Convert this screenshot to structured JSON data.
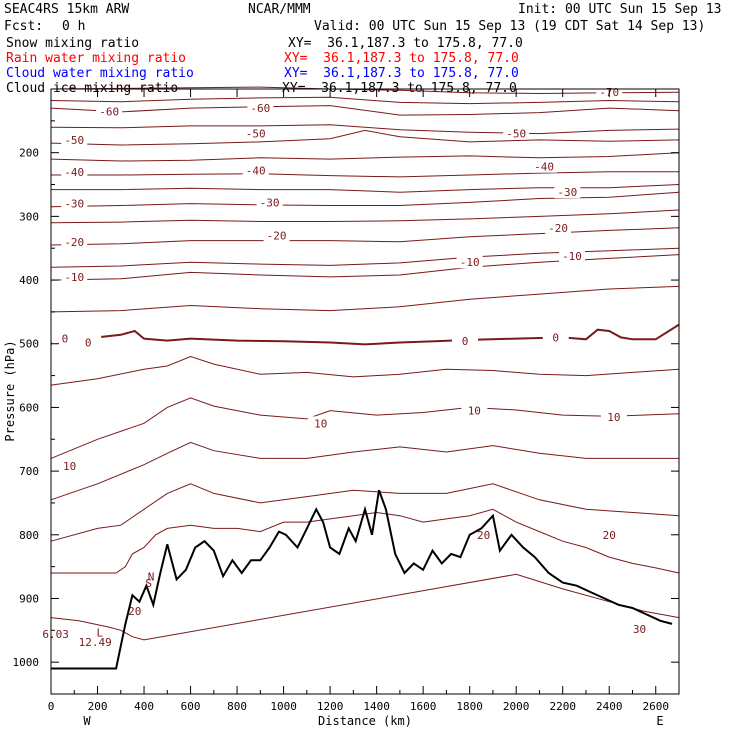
{
  "header": {
    "model": "SEAC4RS 15km ARW",
    "org": "NCAR/MMM",
    "init": "Init: 00 UTC Sun 15 Sep 13",
    "fcst_label": "Fcst:",
    "fcst_value": "0 h",
    "valid": "Valid: 00 UTC Sun 15 Sep 13 (19 CDT Sat 14 Sep 13)"
  },
  "fields": [
    {
      "name": "Snow mixing ratio",
      "xy": "XY=  36.1,187.3 to 175.8, 77.0",
      "color": "#000000"
    },
    {
      "name": "Rain water mixing ratio",
      "xy": "XY=  36.1,187.3 to 175.8, 77.0",
      "color": "#ff0000"
    },
    {
      "name": "Cloud water mixing ratio",
      "xy": "XY=  36.1,187.3 to 175.8, 77.0",
      "color": "#0000ff"
    },
    {
      "name": "Cloud ice mixing ratio",
      "xy": "XY=  36.1,187.3 to 175.8, 77.0",
      "color": "#000000"
    }
  ],
  "colors": {
    "isotherm": "#7a1a1a",
    "zero_isotherm": "#7a1a1a",
    "terrain": "#000000"
  },
  "chart_data": {
    "type": "line",
    "title": "",
    "xlabel": "Distance (km)",
    "ylabel": "Pressure (hPa)",
    "xlim": [
      0,
      2700
    ],
    "ylim": [
      1050,
      100
    ],
    "x_ticks": [
      0,
      200,
      400,
      600,
      800,
      1000,
      1200,
      1400,
      1600,
      1800,
      2000,
      2200,
      2400,
      2600
    ],
    "y_ticks": [
      200,
      300,
      400,
      500,
      600,
      700,
      800,
      900,
      1000
    ],
    "x_end_labels": {
      "left": "W",
      "right": "E"
    },
    "grid": false,
    "terrain": {
      "x": [
        0,
        280,
        320,
        350,
        380,
        410,
        440,
        470,
        500,
        540,
        580,
        620,
        660,
        700,
        740,
        780,
        820,
        860,
        900,
        940,
        980,
        1010,
        1060,
        1100,
        1140,
        1170,
        1200,
        1240,
        1280,
        1310,
        1350,
        1380,
        1410,
        1440,
        1480,
        1520,
        1560,
        1600,
        1640,
        1680,
        1720,
        1760,
        1800,
        1850,
        1900,
        1930,
        1980,
        2030,
        2080,
        2140,
        2200,
        2260,
        2320,
        2380,
        2440,
        2500,
        2560,
        2620,
        2670
      ],
      "p": [
        1010,
        1010,
        940,
        895,
        905,
        880,
        910,
        860,
        815,
        870,
        855,
        820,
        810,
        825,
        865,
        840,
        860,
        840,
        840,
        820,
        795,
        800,
        820,
        790,
        760,
        780,
        820,
        830,
        790,
        810,
        760,
        800,
        730,
        760,
        830,
        860,
        845,
        855,
        825,
        845,
        830,
        835,
        800,
        790,
        770,
        825,
        800,
        820,
        835,
        860,
        875,
        880,
        890,
        900,
        910,
        915,
        925,
        935,
        940
      ]
    },
    "isotherms": [
      {
        "value": -70,
        "labels": [
          {
            "x": 2400,
            "p": 105
          }
        ],
        "x": [
          0,
          300,
          600,
          900,
          1200,
          1500,
          1800,
          2100,
          2400,
          2700
        ],
        "p": [
          100,
          99,
          98,
          97,
          100,
          102,
          106,
          107,
          106,
          105
        ]
      },
      {
        "value": -65,
        "labels": [],
        "x": [
          0,
          300,
          600,
          900,
          1200,
          1500,
          1800,
          2100,
          2400,
          2700
        ],
        "p": [
          118,
          120,
          116,
          114,
          113,
          121,
          123,
          121,
          118,
          120
        ]
      },
      {
        "value": -60,
        "labels": [
          {
            "x": 250,
            "p": 135
          },
          {
            "x": 900,
            "p": 130
          }
        ],
        "x": [
          0,
          300,
          600,
          900,
          1200,
          1500,
          1800,
          2100,
          2400,
          2700
        ],
        "p": [
          130,
          136,
          130,
          128,
          126,
          141,
          140,
          137,
          130,
          134
        ]
      },
      {
        "value": -55,
        "labels": [],
        "x": [
          0,
          300,
          600,
          900,
          1200,
          1500,
          1800,
          2100,
          2400,
          2700
        ],
        "p": [
          160,
          161,
          158,
          158,
          156,
          164,
          168,
          170,
          165,
          163
        ]
      },
      {
        "value": -50,
        "labels": [
          {
            "x": 100,
            "p": 180
          },
          {
            "x": 880,
            "p": 170
          },
          {
            "x": 2000,
            "p": 170
          }
        ],
        "x": [
          0,
          300,
          600,
          900,
          1200,
          1350,
          1500,
          1800,
          2100,
          2400,
          2700
        ],
        "p": [
          185,
          188,
          186,
          183,
          178,
          165,
          175,
          183,
          180,
          182,
          180
        ]
      },
      {
        "value": -45,
        "labels": [],
        "x": [
          0,
          300,
          600,
          900,
          1200,
          1500,
          1800,
          2100,
          2400,
          2700
        ],
        "p": [
          210,
          213,
          212,
          208,
          210,
          207,
          205,
          208,
          206,
          200
        ]
      },
      {
        "value": -40,
        "labels": [
          {
            "x": 100,
            "p": 230
          },
          {
            "x": 880,
            "p": 228
          },
          {
            "x": 2120,
            "p": 222
          }
        ],
        "x": [
          0,
          300,
          600,
          900,
          1200,
          1500,
          1800,
          2100,
          2400,
          2700
        ],
        "p": [
          235,
          235,
          234,
          233,
          236,
          238,
          235,
          232,
          230,
          230
        ]
      },
      {
        "value": -35,
        "labels": [],
        "x": [
          0,
          300,
          600,
          900,
          1200,
          1500,
          1800,
          2100,
          2400,
          2700
        ],
        "p": [
          258,
          258,
          256,
          258,
          258,
          262,
          258,
          255,
          255,
          250
        ]
      },
      {
        "value": -30,
        "labels": [
          {
            "x": 100,
            "p": 280
          },
          {
            "x": 940,
            "p": 278
          },
          {
            "x": 2220,
            "p": 262
          }
        ],
        "x": [
          0,
          300,
          600,
          900,
          1200,
          1500,
          1800,
          2100,
          2400,
          2700
        ],
        "p": [
          285,
          283,
          280,
          282,
          283,
          283,
          278,
          272,
          270,
          262
        ]
      },
      {
        "value": -25,
        "labels": [],
        "x": [
          0,
          300,
          600,
          900,
          1200,
          1500,
          1800,
          2100,
          2400,
          2700
        ],
        "p": [
          310,
          309,
          306,
          308,
          308,
          307,
          304,
          300,
          296,
          290
        ]
      },
      {
        "value": -20,
        "labels": [
          {
            "x": 100,
            "p": 340
          },
          {
            "x": 970,
            "p": 330
          },
          {
            "x": 2180,
            "p": 318
          }
        ],
        "x": [
          0,
          300,
          600,
          900,
          1200,
          1500,
          1800,
          2100,
          2400,
          2700
        ],
        "p": [
          345,
          343,
          338,
          338,
          338,
          340,
          332,
          327,
          322,
          318
        ]
      },
      {
        "value": -15,
        "labels": [],
        "x": [
          0,
          300,
          600,
          900,
          1200,
          1500,
          1800,
          2100,
          2400,
          2700
        ],
        "p": [
          380,
          378,
          372,
          375,
          377,
          373,
          364,
          358,
          354,
          350
        ]
      },
      {
        "value": -10,
        "labels": [
          {
            "x": 100,
            "p": 395
          },
          {
            "x": 1800,
            "p": 372
          },
          {
            "x": 2240,
            "p": 362
          }
        ],
        "x": [
          0,
          300,
          600,
          900,
          1200,
          1500,
          1800,
          2100,
          2400,
          2700
        ],
        "p": [
          400,
          398,
          388,
          392,
          395,
          392,
          380,
          372,
          366,
          360
        ]
      },
      {
        "value": -5,
        "labels": [],
        "x": [
          0,
          300,
          600,
          900,
          1200,
          1500,
          1800,
          2100,
          2400,
          2700
        ],
        "p": [
          450,
          448,
          440,
          445,
          448,
          442,
          430,
          422,
          414,
          410
        ]
      },
      {
        "value": 0,
        "labels": [
          {
            "x": 60,
            "p": 492
          },
          {
            "x": 160,
            "p": 498
          },
          {
            "x": 1780,
            "p": 496
          },
          {
            "x": 2170,
            "p": 490
          }
        ],
        "x": [
          0,
          150,
          300,
          360,
          400,
          500,
          600,
          800,
          1000,
          1200,
          1350,
          1500,
          1650,
          1800,
          2000,
          2200,
          2300,
          2350,
          2400,
          2450,
          2500,
          2600,
          2700
        ],
        "p": [
          500,
          492,
          486,
          480,
          492,
          495,
          492,
          495,
          496,
          498,
          501,
          498,
          496,
          494,
          492,
          490,
          493,
          478,
          480,
          490,
          493,
          493,
          470
        ]
      },
      {
        "value": 5,
        "labels": [],
        "x": [
          0,
          200,
          400,
          500,
          600,
          700,
          900,
          1100,
          1300,
          1500,
          1700,
          1900,
          2100,
          2300,
          2500,
          2700
        ],
        "p": [
          565,
          555,
          540,
          535,
          520,
          532,
          548,
          545,
          552,
          548,
          540,
          542,
          548,
          550,
          545,
          540
        ]
      },
      {
        "value": 10,
        "labels": [
          {
            "x": 80,
            "p": 692
          },
          {
            "x": 1160,
            "p": 625
          },
          {
            "x": 1820,
            "p": 605
          },
          {
            "x": 2420,
            "p": 615
          }
        ],
        "x": [
          0,
          200,
          400,
          500,
          600,
          700,
          900,
          1100,
          1200,
          1400,
          1600,
          1800,
          2000,
          2200,
          2400,
          2700
        ],
        "p": [
          680,
          650,
          625,
          600,
          585,
          598,
          612,
          618,
          605,
          612,
          608,
          600,
          604,
          612,
          614,
          610
        ]
      },
      {
        "value": 15,
        "labels": [],
        "x": [
          0,
          200,
          400,
          500,
          600,
          700,
          900,
          1100,
          1300,
          1500,
          1700,
          1900,
          2100,
          2300,
          2500,
          2700
        ],
        "p": [
          745,
          720,
          690,
          672,
          655,
          668,
          680,
          680,
          670,
          662,
          670,
          660,
          672,
          680,
          680,
          680
        ]
      },
      {
        "value": 20,
        "labels": [
          {
            "x": 1860,
            "p": 800
          },
          {
            "x": 2400,
            "p": 800
          },
          {
            "x": 360,
            "p": 920
          }
        ],
        "x": [
          0,
          200,
          300,
          400,
          500,
          600,
          700,
          900,
          1100,
          1300,
          1500,
          1700,
          1900,
          2100,
          2300,
          2500,
          2700
        ],
        "p": [
          810,
          790,
          785,
          760,
          735,
          720,
          735,
          750,
          740,
          730,
          735,
          735,
          720,
          745,
          760,
          765,
          770
        ]
      },
      {
        "value": 25,
        "labels": [],
        "x": [
          0,
          150,
          280,
          320,
          350,
          400,
          450,
          500,
          600,
          700,
          800,
          900,
          1000,
          1100,
          1200,
          1300,
          1400,
          1500,
          1600,
          1700,
          1800,
          1900,
          2000,
          2100,
          2200,
          2300,
          2400,
          2500,
          2600,
          2700
        ],
        "p": [
          860,
          860,
          860,
          850,
          830,
          820,
          800,
          790,
          785,
          790,
          790,
          795,
          780,
          780,
          775,
          770,
          765,
          770,
          780,
          775,
          770,
          760,
          780,
          795,
          810,
          820,
          835,
          845,
          852,
          860
        ]
      },
      {
        "value": 30,
        "labels": [
          {
            "x": 2530,
            "p": 948
          }
        ],
        "x": [
          0,
          120,
          250,
          300,
          350,
          400,
          2000,
          2200,
          2400,
          2550,
          2700
        ],
        "p": [
          930,
          935,
          945,
          950,
          960,
          965,
          862,
          885,
          905,
          920,
          930
        ]
      }
    ],
    "annotations": [
      {
        "text": "L",
        "x": 210,
        "p": 960
      },
      {
        "text": "12.49",
        "x": 190,
        "p": 975
      },
      {
        "text": "6.03",
        "x": 20,
        "p": 962
      },
      {
        "text": "N",
        "x": 430,
        "p": 872
      },
      {
        "text": "S",
        "x": 420,
        "p": 882
      }
    ]
  }
}
